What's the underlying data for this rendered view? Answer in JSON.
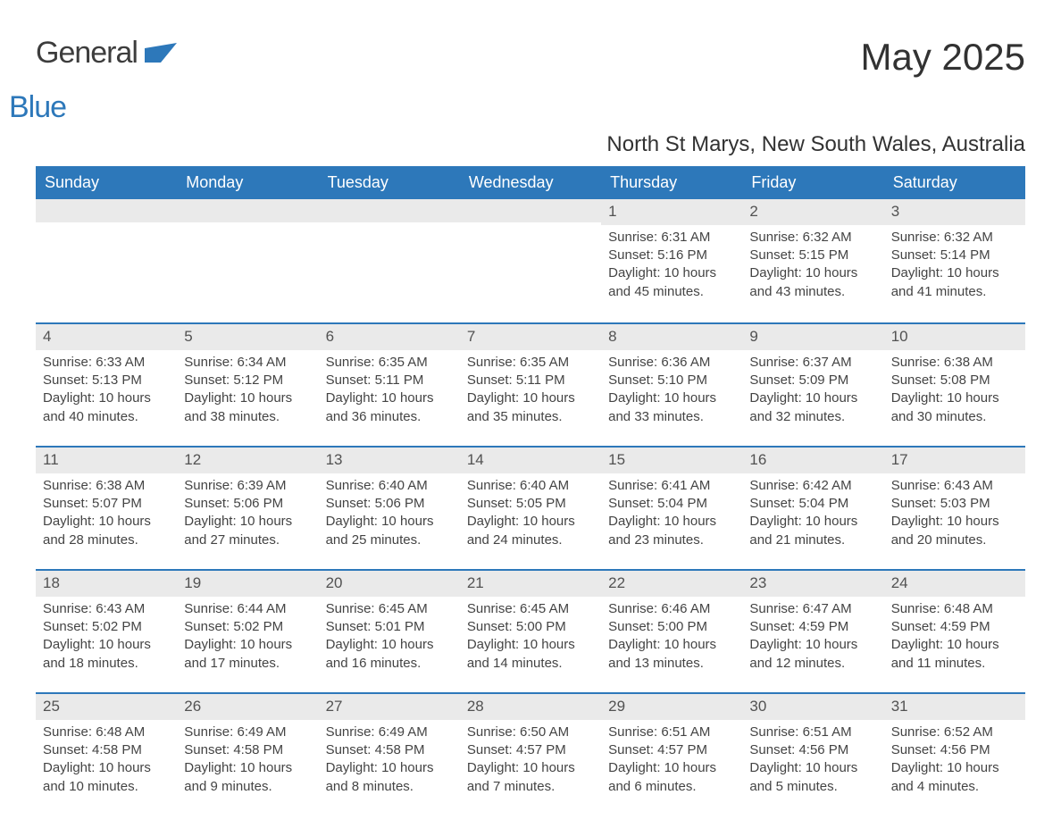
{
  "logo": {
    "part1": "General",
    "part2": "Blue"
  },
  "title": "May 2025",
  "subtitle": "North St Marys, New South Wales, Australia",
  "colors": {
    "brand_blue": "#2d78ba",
    "header_text": "#ffffff",
    "daybar_bg": "#eaeaea",
    "body_text": "#444444",
    "page_bg": "#ffffff"
  },
  "weekdays": [
    "Sunday",
    "Monday",
    "Tuesday",
    "Wednesday",
    "Thursday",
    "Friday",
    "Saturday"
  ],
  "weeks": [
    [
      null,
      null,
      null,
      null,
      {
        "n": "1",
        "sunrise": "Sunrise: 6:31 AM",
        "sunset": "Sunset: 5:16 PM",
        "daylight": "Daylight: 10 hours and 45 minutes."
      },
      {
        "n": "2",
        "sunrise": "Sunrise: 6:32 AM",
        "sunset": "Sunset: 5:15 PM",
        "daylight": "Daylight: 10 hours and 43 minutes."
      },
      {
        "n": "3",
        "sunrise": "Sunrise: 6:32 AM",
        "sunset": "Sunset: 5:14 PM",
        "daylight": "Daylight: 10 hours and 41 minutes."
      }
    ],
    [
      {
        "n": "4",
        "sunrise": "Sunrise: 6:33 AM",
        "sunset": "Sunset: 5:13 PM",
        "daylight": "Daylight: 10 hours and 40 minutes."
      },
      {
        "n": "5",
        "sunrise": "Sunrise: 6:34 AM",
        "sunset": "Sunset: 5:12 PM",
        "daylight": "Daylight: 10 hours and 38 minutes."
      },
      {
        "n": "6",
        "sunrise": "Sunrise: 6:35 AM",
        "sunset": "Sunset: 5:11 PM",
        "daylight": "Daylight: 10 hours and 36 minutes."
      },
      {
        "n": "7",
        "sunrise": "Sunrise: 6:35 AM",
        "sunset": "Sunset: 5:11 PM",
        "daylight": "Daylight: 10 hours and 35 minutes."
      },
      {
        "n": "8",
        "sunrise": "Sunrise: 6:36 AM",
        "sunset": "Sunset: 5:10 PM",
        "daylight": "Daylight: 10 hours and 33 minutes."
      },
      {
        "n": "9",
        "sunrise": "Sunrise: 6:37 AM",
        "sunset": "Sunset: 5:09 PM",
        "daylight": "Daylight: 10 hours and 32 minutes."
      },
      {
        "n": "10",
        "sunrise": "Sunrise: 6:38 AM",
        "sunset": "Sunset: 5:08 PM",
        "daylight": "Daylight: 10 hours and 30 minutes."
      }
    ],
    [
      {
        "n": "11",
        "sunrise": "Sunrise: 6:38 AM",
        "sunset": "Sunset: 5:07 PM",
        "daylight": "Daylight: 10 hours and 28 minutes."
      },
      {
        "n": "12",
        "sunrise": "Sunrise: 6:39 AM",
        "sunset": "Sunset: 5:06 PM",
        "daylight": "Daylight: 10 hours and 27 minutes."
      },
      {
        "n": "13",
        "sunrise": "Sunrise: 6:40 AM",
        "sunset": "Sunset: 5:06 PM",
        "daylight": "Daylight: 10 hours and 25 minutes."
      },
      {
        "n": "14",
        "sunrise": "Sunrise: 6:40 AM",
        "sunset": "Sunset: 5:05 PM",
        "daylight": "Daylight: 10 hours and 24 minutes."
      },
      {
        "n": "15",
        "sunrise": "Sunrise: 6:41 AM",
        "sunset": "Sunset: 5:04 PM",
        "daylight": "Daylight: 10 hours and 23 minutes."
      },
      {
        "n": "16",
        "sunrise": "Sunrise: 6:42 AM",
        "sunset": "Sunset: 5:04 PM",
        "daylight": "Daylight: 10 hours and 21 minutes."
      },
      {
        "n": "17",
        "sunrise": "Sunrise: 6:43 AM",
        "sunset": "Sunset: 5:03 PM",
        "daylight": "Daylight: 10 hours and 20 minutes."
      }
    ],
    [
      {
        "n": "18",
        "sunrise": "Sunrise: 6:43 AM",
        "sunset": "Sunset: 5:02 PM",
        "daylight": "Daylight: 10 hours and 18 minutes."
      },
      {
        "n": "19",
        "sunrise": "Sunrise: 6:44 AM",
        "sunset": "Sunset: 5:02 PM",
        "daylight": "Daylight: 10 hours and 17 minutes."
      },
      {
        "n": "20",
        "sunrise": "Sunrise: 6:45 AM",
        "sunset": "Sunset: 5:01 PM",
        "daylight": "Daylight: 10 hours and 16 minutes."
      },
      {
        "n": "21",
        "sunrise": "Sunrise: 6:45 AM",
        "sunset": "Sunset: 5:00 PM",
        "daylight": "Daylight: 10 hours and 14 minutes."
      },
      {
        "n": "22",
        "sunrise": "Sunrise: 6:46 AM",
        "sunset": "Sunset: 5:00 PM",
        "daylight": "Daylight: 10 hours and 13 minutes."
      },
      {
        "n": "23",
        "sunrise": "Sunrise: 6:47 AM",
        "sunset": "Sunset: 4:59 PM",
        "daylight": "Daylight: 10 hours and 12 minutes."
      },
      {
        "n": "24",
        "sunrise": "Sunrise: 6:48 AM",
        "sunset": "Sunset: 4:59 PM",
        "daylight": "Daylight: 10 hours and 11 minutes."
      }
    ],
    [
      {
        "n": "25",
        "sunrise": "Sunrise: 6:48 AM",
        "sunset": "Sunset: 4:58 PM",
        "daylight": "Daylight: 10 hours and 10 minutes."
      },
      {
        "n": "26",
        "sunrise": "Sunrise: 6:49 AM",
        "sunset": "Sunset: 4:58 PM",
        "daylight": "Daylight: 10 hours and 9 minutes."
      },
      {
        "n": "27",
        "sunrise": "Sunrise: 6:49 AM",
        "sunset": "Sunset: 4:58 PM",
        "daylight": "Daylight: 10 hours and 8 minutes."
      },
      {
        "n": "28",
        "sunrise": "Sunrise: 6:50 AM",
        "sunset": "Sunset: 4:57 PM",
        "daylight": "Daylight: 10 hours and 7 minutes."
      },
      {
        "n": "29",
        "sunrise": "Sunrise: 6:51 AM",
        "sunset": "Sunset: 4:57 PM",
        "daylight": "Daylight: 10 hours and 6 minutes."
      },
      {
        "n": "30",
        "sunrise": "Sunrise: 6:51 AM",
        "sunset": "Sunset: 4:56 PM",
        "daylight": "Daylight: 10 hours and 5 minutes."
      },
      {
        "n": "31",
        "sunrise": "Sunrise: 6:52 AM",
        "sunset": "Sunset: 4:56 PM",
        "daylight": "Daylight: 10 hours and 4 minutes."
      }
    ]
  ]
}
